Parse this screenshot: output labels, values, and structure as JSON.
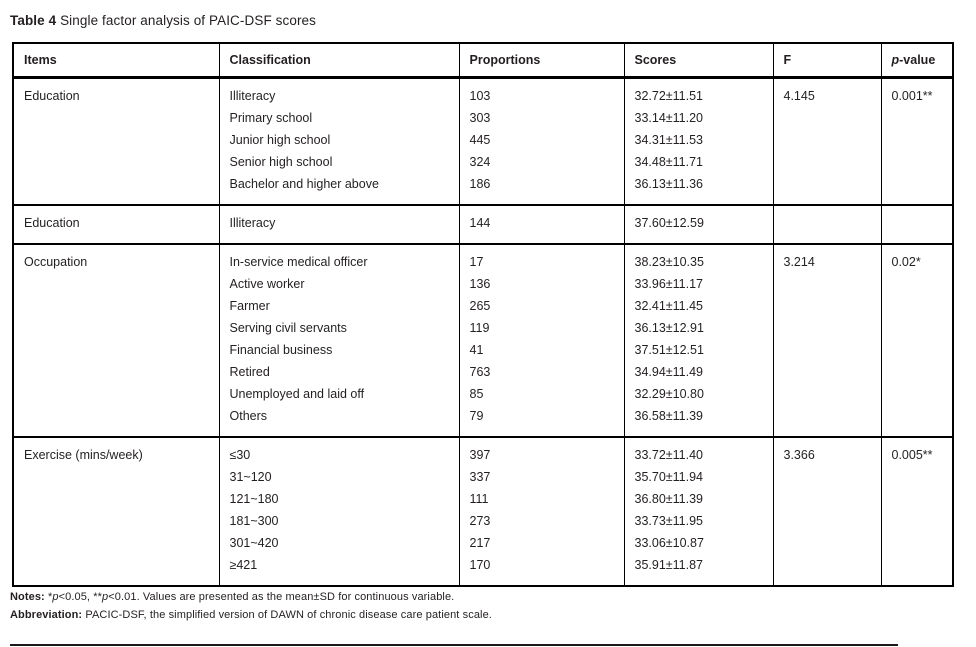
{
  "title": {
    "label": "Table 4",
    "text": "Single factor analysis of PAIC-DSF scores"
  },
  "table": {
    "columns": [
      "Items",
      "Classification",
      "Proportions",
      "Scores",
      "F",
      "p-value"
    ],
    "sections": [
      {
        "item": "Education",
        "f": "4.145",
        "p": "0.001**",
        "rows": [
          {
            "classification": "Illiteracy",
            "proportion": "103",
            "score": "32.72±11.51"
          },
          {
            "classification": "Primary school",
            "proportion": "303",
            "score": "33.14±11.20"
          },
          {
            "classification": "Junior high school",
            "proportion": "445",
            "score": "34.31±11.53"
          },
          {
            "classification": "Senior high school",
            "proportion": "324",
            "score": "34.48±11.71"
          },
          {
            "classification": "Bachelor and higher above",
            "proportion": "186",
            "score": "36.13±11.36"
          }
        ]
      },
      {
        "item": "Education",
        "f": "",
        "p": "",
        "rows": [
          {
            "classification": "Illiteracy",
            "proportion": "144",
            "score": "37.60±12.59"
          }
        ]
      },
      {
        "item": "Occupation",
        "f": "3.214",
        "p": "0.02*",
        "rows": [
          {
            "classification": "In-service medical officer",
            "proportion": "17",
            "score": "38.23±10.35"
          },
          {
            "classification": "Active worker",
            "proportion": "136",
            "score": "33.96±11.17"
          },
          {
            "classification": "Farmer",
            "proportion": "265",
            "score": "32.41±11.45"
          },
          {
            "classification": "Serving civil servants",
            "proportion": "119",
            "score": "36.13±12.91"
          },
          {
            "classification": "Financial business",
            "proportion": "41",
            "score": "37.51±12.51"
          },
          {
            "classification": "Retired",
            "proportion": "763",
            "score": "34.94±11.49"
          },
          {
            "classification": "Unemployed and laid off",
            "proportion": "85",
            "score": "32.29±10.80"
          },
          {
            "classification": "Others",
            "proportion": "79",
            "score": "36.58±11.39"
          }
        ]
      },
      {
        "item": "Exercise (mins/week)",
        "f": "3.366",
        "p": "0.005**",
        "rows": [
          {
            "classification": "≤30",
            "proportion": "397",
            "score": "33.72±11.40"
          },
          {
            "classification": "31~120",
            "proportion": "337",
            "score": "35.70±11.94"
          },
          {
            "classification": "121~180",
            "proportion": "111",
            "score": "36.80±11.39"
          },
          {
            "classification": "181~300",
            "proportion": "273",
            "score": "33.73±11.95"
          },
          {
            "classification": "301~420",
            "proportion": "217",
            "score": "33.06±10.87"
          },
          {
            "classification": "≥421",
            "proportion": "170",
            "score": "35.91±11.87"
          }
        ]
      }
    ]
  },
  "footnotes": {
    "notes_label": "Notes:",
    "notes_text": "*p<0.05, **p<0.01. Values are presented as the mean±SD for continuous variable.",
    "abbreviation_label": "Abbreviation:",
    "abbreviation_text": "PACIC-DSF, the simplified version of DAWN of chronic disease care patient scale."
  },
  "colors": {
    "text": "#231f20",
    "border": "#000000",
    "background": "#ffffff"
  }
}
